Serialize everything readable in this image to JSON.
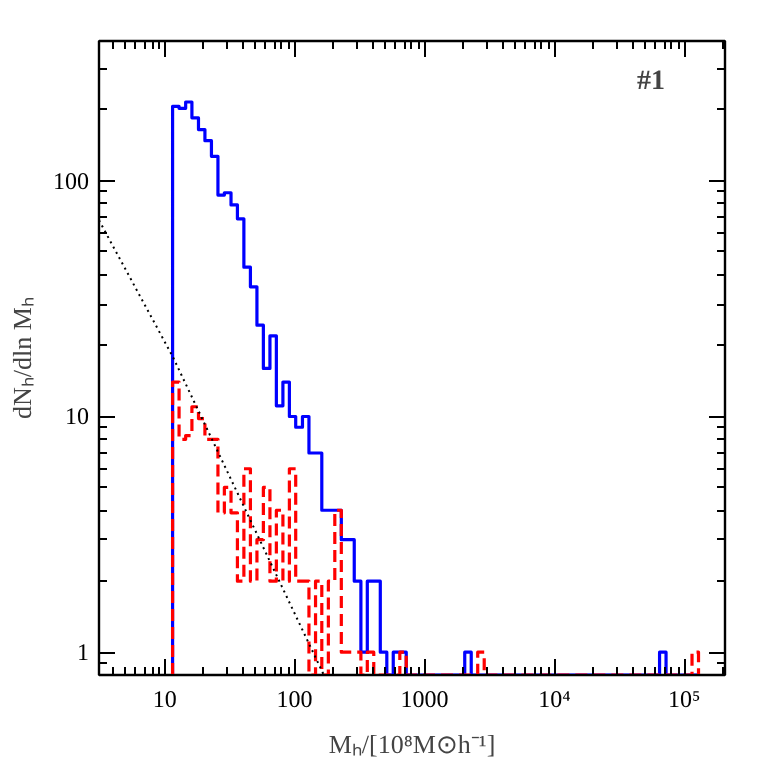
{
  "chart_data": {
    "type": "histogram",
    "xlabel": "Mₕ/[10⁸M⊙h⁻¹]",
    "ylabel": "dNₕ/dln Mₕ",
    "annotations": [
      "#1"
    ],
    "log": "xy",
    "grid": false,
    "xlim": [
      3.12,
      206000
    ],
    "ylim": [
      0.8,
      392
    ],
    "xticks": [
      10,
      100,
      1000,
      {
        "value": 10000,
        "label": "10⁴"
      },
      {
        "value": 100000,
        "label": "10⁵"
      }
    ],
    "yticks": [
      1,
      10,
      100
    ],
    "bins": [
      11.5,
      12.9,
      14.5,
      16.2,
      18.2,
      20.4,
      22.9,
      25.7,
      28.8,
      32.4,
      36.3,
      40.7,
      45.7,
      51.3,
      57.5,
      64.6,
      72.4,
      81.3,
      91.2,
      102,
      115,
      129,
      145,
      162,
      182,
      204,
      229,
      257,
      288,
      324,
      363,
      407,
      457,
      513,
      575,
      646,
      724,
      813,
      912,
      1023,
      1148,
      1288,
      1445,
      1622,
      1820,
      2042,
      2291,
      2570,
      2884,
      3236,
      3631,
      4074,
      4571,
      5129,
      5754,
      6457,
      7244,
      8128,
      9120,
      10230,
      11480,
      12880,
      14450,
      16220,
      18200,
      20420,
      22910,
      25700,
      28840,
      32360,
      36310,
      40740,
      45710,
      51290,
      57540,
      64570,
      72440,
      81280,
      91200,
      102300,
      114800,
      128800
    ],
    "series": [
      {
        "type": "histogram",
        "color": "#0000ff",
        "line_style": "solid",
        "values": [
          207,
          203,
          216,
          185,
          165,
          148,
          127,
          87,
          89,
          79,
          69,
          43,
          35.5,
          24.4,
          16,
          22,
          11.1,
          14,
          10,
          9,
          10,
          7,
          7,
          4,
          4,
          4,
          3,
          3,
          2,
          1,
          2,
          2,
          1,
          null,
          1,
          1,
          null,
          null,
          null,
          null,
          null,
          null,
          null,
          null,
          null,
          1,
          null,
          null,
          null,
          null,
          null,
          null,
          null,
          null,
          null,
          null,
          null,
          null,
          null,
          null,
          null,
          null,
          null,
          null,
          null,
          null,
          null,
          null,
          null,
          null,
          null,
          null,
          null,
          null,
          null,
          1,
          null,
          null,
          null,
          null,
          null
        ]
      },
      {
        "type": "histogram",
        "color": "#ff0000",
        "line_style": "dashed",
        "values": [
          14,
          8,
          8.3,
          11,
          9.8,
          8,
          8,
          3.9,
          5,
          3.9,
          2,
          6,
          2,
          3,
          5,
          2,
          4,
          2,
          6,
          2,
          2,
          null,
          2,
          null,
          2,
          4,
          1,
          1,
          1,
          null,
          1,
          null,
          null,
          null,
          null,
          1,
          null,
          null,
          null,
          null,
          null,
          null,
          null,
          null,
          null,
          null,
          null,
          1,
          null,
          null,
          null,
          null,
          null,
          null,
          null,
          null,
          null,
          null,
          null,
          null,
          null,
          null,
          null,
          null,
          null,
          null,
          null,
          null,
          null,
          null,
          null,
          null,
          null,
          null,
          null,
          null,
          null,
          null,
          null,
          null,
          1
        ]
      },
      {
        "type": "line",
        "color": "#000000",
        "line_style": "dotted",
        "x": [
          3.12,
          11.5,
          168
        ],
        "values": [
          68,
          18,
          0.8
        ]
      }
    ]
  }
}
